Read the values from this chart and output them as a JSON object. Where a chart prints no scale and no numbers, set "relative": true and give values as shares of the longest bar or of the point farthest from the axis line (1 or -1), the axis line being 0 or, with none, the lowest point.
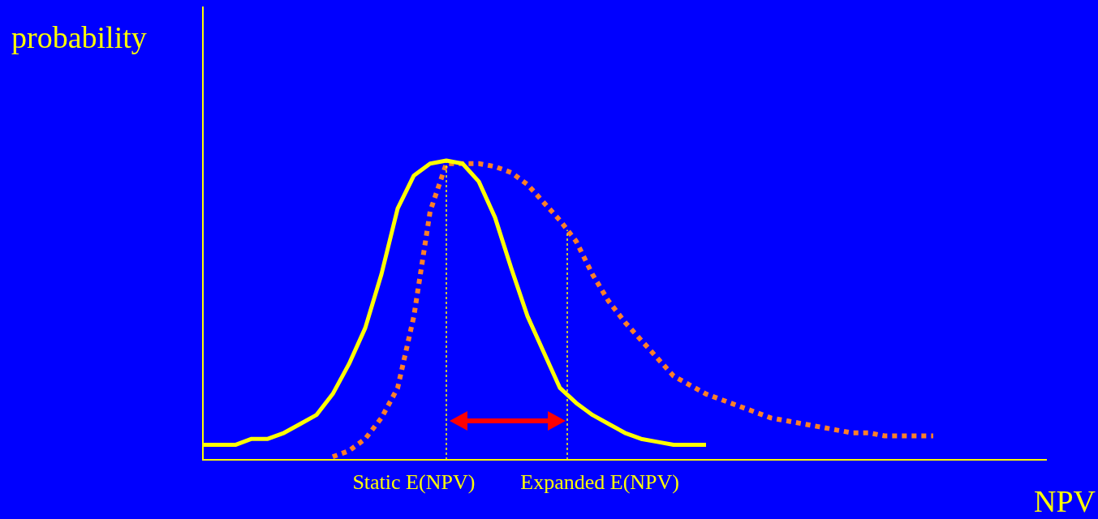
{
  "chart_data": {
    "type": "line",
    "relative": true,
    "xlabel": "NPV",
    "ylabel": "probability",
    "categories": [
      null,
      null,
      null,
      null,
      null,
      null,
      null,
      null,
      null,
      null,
      null,
      null,
      null,
      null,
      null,
      null,
      null,
      null,
      null,
      null,
      null,
      null,
      null,
      null,
      null,
      null,
      null,
      null,
      null,
      null,
      null,
      null,
      null,
      null,
      null,
      null,
      null,
      null,
      null,
      null,
      null,
      null,
      null,
      null,
      null,
      null,
      null,
      null,
      null,
      null,
      null,
      null,
      null
    ],
    "marker": "none",
    "legend": false,
    "series": [
      {
        "color": "#ffff00",
        "line_style": "solid",
        "values": [
          0.05,
          0.05,
          0.05,
          0.07,
          0.07,
          0.09,
          0.12,
          0.15,
          0.22,
          0.32,
          0.44,
          0.62,
          0.84,
          0.95,
          0.99,
          1,
          0.99,
          0.93,
          0.81,
          0.64,
          0.48,
          0.36,
          0.24,
          0.19,
          0.15,
          0.12,
          0.09,
          0.07,
          0.06,
          0.05,
          0.05,
          0.05,
          null,
          null,
          null,
          null,
          null,
          null,
          null,
          null,
          null,
          null,
          null,
          null,
          null,
          null,
          null,
          null,
          null,
          null,
          null,
          null,
          null
        ]
      },
      {
        "color": "#ff7f27",
        "line_style": "dotted",
        "values": [
          null,
          null,
          null,
          null,
          null,
          null,
          null,
          null,
          0.01,
          0.03,
          0.07,
          0.14,
          0.24,
          0.48,
          0.83,
          0.99,
          0.99,
          0.99,
          0.98,
          0.96,
          0.92,
          0.86,
          0.8,
          0.73,
          0.62,
          0.53,
          0.46,
          0.4,
          0.34,
          0.28,
          0.25,
          0.22,
          0.2,
          0.18,
          0.16,
          0.14,
          0.13,
          0.12,
          0.11,
          0.1,
          0.09,
          0.09,
          0.08,
          0.08,
          0.08,
          0.08,
          null,
          null,
          null,
          null,
          null,
          null,
          null
        ]
      }
    ],
    "annotations": [
      "Static E(NPV)",
      "Expanded E(NPV)"
    ]
  }
}
